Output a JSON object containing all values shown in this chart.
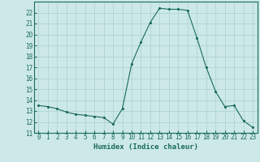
{
  "x": [
    0,
    1,
    2,
    3,
    4,
    5,
    6,
    7,
    8,
    9,
    10,
    11,
    12,
    13,
    14,
    15,
    16,
    17,
    18,
    19,
    20,
    21,
    22,
    23
  ],
  "y": [
    13.5,
    13.4,
    13.2,
    12.9,
    12.7,
    12.6,
    12.5,
    12.4,
    11.8,
    13.2,
    17.3,
    19.3,
    21.1,
    22.4,
    22.3,
    22.3,
    22.2,
    19.7,
    17.0,
    14.8,
    13.4,
    13.5,
    12.1,
    11.5
  ],
  "line_color": "#1a6b5a",
  "marker_color": "#1a6b5a",
  "bg_color": "#cce8e8",
  "grid_color": "#aad0d0",
  "xlabel": "Humidex (Indice chaleur)",
  "ylabel": "",
  "xlim": [
    -0.5,
    23.5
  ],
  "ylim": [
    11,
    23
  ],
  "yticks": [
    11,
    12,
    13,
    14,
    15,
    16,
    17,
    18,
    19,
    20,
    21,
    22
  ],
  "xticks": [
    0,
    1,
    2,
    3,
    4,
    5,
    6,
    7,
    8,
    9,
    10,
    11,
    12,
    13,
    14,
    15,
    16,
    17,
    18,
    19,
    20,
    21,
    22,
    23
  ],
  "title_fontsize": 6.5,
  "label_fontsize": 6.5,
  "tick_fontsize": 5.5
}
